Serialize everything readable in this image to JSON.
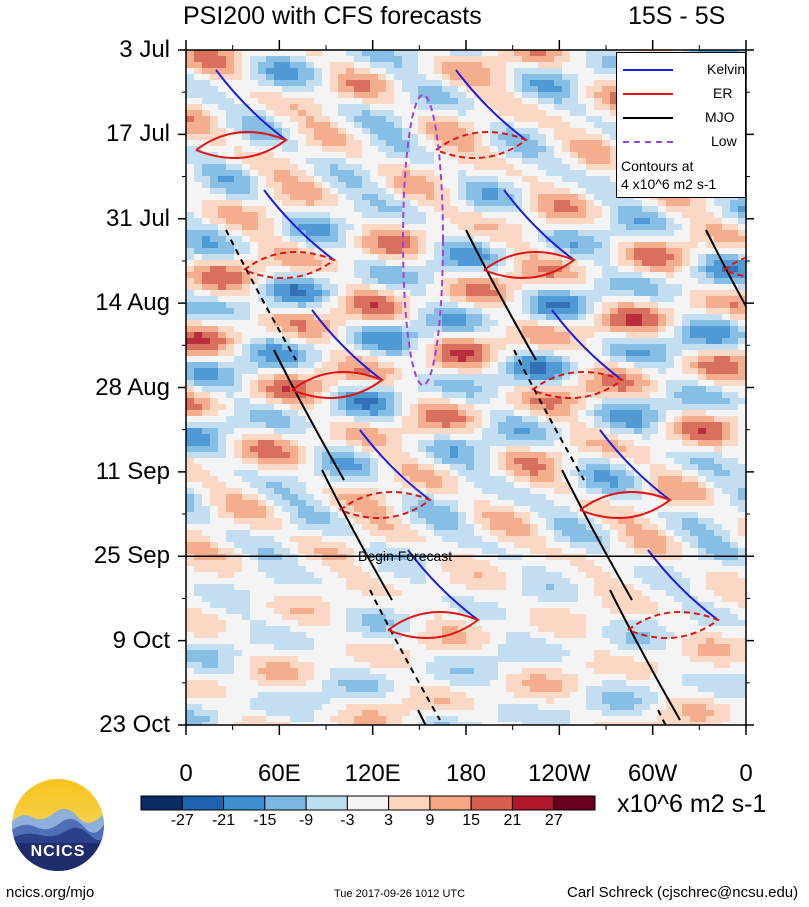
{
  "chart_data": {
    "type": "heatmap",
    "title": "PSI200 with CFS forecasts",
    "subtitle": "15S - 5S",
    "x_ticks": [
      "0",
      "60E",
      "120E",
      "180",
      "120W",
      "60W",
      "0"
    ],
    "x_tick_values": [
      0,
      60,
      120,
      180,
      240,
      300,
      360
    ],
    "xlim": [
      0,
      360
    ],
    "y_ticks": [
      "3 Jul",
      "17 Jul",
      "31 Jul",
      "14 Aug",
      "28 Aug",
      "11 Sep",
      "25 Sep",
      "9 Oct",
      "23 Oct"
    ],
    "ylim": [
      "3 Jul",
      "23 Oct"
    ],
    "forecast_start": "25 Sep",
    "forecast_label": "Begin Forecast",
    "colorbar": {
      "levels": [
        -27,
        -21,
        -15,
        -9,
        -3,
        3,
        9,
        15,
        21,
        27
      ],
      "colors": [
        "#0b2c66",
        "#1e63b0",
        "#3d8fd0",
        "#7ab8e4",
        "#bcdcf0",
        "#f4f4f4",
        "#fcd5bf",
        "#f4a582",
        "#d6604d",
        "#b2182b",
        "#67001f"
      ],
      "units": "x10^6 m2 s-1"
    },
    "legend": {
      "position": "top-right",
      "entries": [
        {
          "name": "Kelvin",
          "color": "#1f1fe0"
        },
        {
          "name": "ER",
          "color": "#e01414"
        },
        {
          "name": "MJO",
          "color": "#000000"
        },
        {
          "name": "Low",
          "color": "#a040e0"
        }
      ],
      "note_line1": "Contours at",
      "note_line2": "4 x10^6 m2 s-1"
    }
  },
  "footer": {
    "site": "ncics.org/mjo",
    "timestamp": "Tue 2017-09-26 1012 UTC",
    "author": "Carl Schreck (cjschrec@ncsu.edu)",
    "logo_text": "NCICS"
  }
}
